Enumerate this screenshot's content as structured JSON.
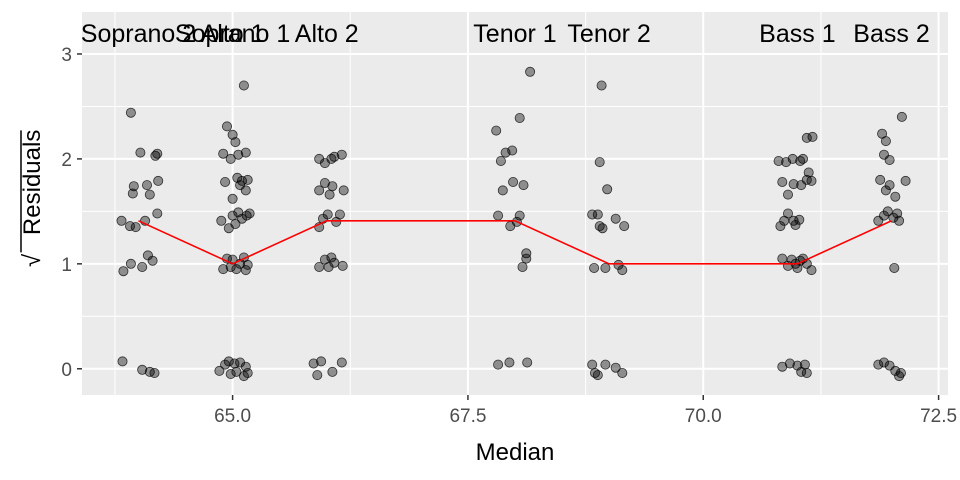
{
  "chart_data": {
    "type": "scatter",
    "title": "",
    "xlabel": "Median",
    "ylabel": "Residuals",
    "ylabel_prefix": "√",
    "xlim": [
      63.4,
      72.6
    ],
    "ylim": [
      -0.25,
      3.4
    ],
    "x_ticks": [
      65.0,
      67.5,
      70.0,
      72.5
    ],
    "x_tick_labels": [
      "65.0",
      "67.5",
      "70.0",
      "72.5"
    ],
    "y_ticks": [
      0,
      1,
      2,
      3
    ],
    "y_tick_labels": [
      "0",
      "1",
      "2",
      "3"
    ],
    "grid": true,
    "panel_background": "#ebebeb",
    "grid_color": "#ffffff",
    "point_color": "#000000",
    "point_alpha": 0.4,
    "trend_color": "#ff0000",
    "voice_labels": [
      {
        "text": "Soprano 2",
        "x": 64.0
      },
      {
        "text": "Soprano 1",
        "x": 65.0
      },
      {
        "text": "Alto 1",
        "x": 65.0
      },
      {
        "text": "Alto 2",
        "x": 66.0
      },
      {
        "text": "Tenor 1",
        "x": 68.0
      },
      {
        "text": "Tenor 2",
        "x": 69.0
      },
      {
        "text": "Bass 1",
        "x": 71.0
      },
      {
        "text": "Bass 2",
        "x": 72.0
      }
    ],
    "trend_line": {
      "x": [
        64.0,
        65.0,
        66.0,
        68.0,
        69.0,
        71.0,
        72.0
      ],
      "y": [
        1.41,
        1.0,
        1.41,
        1.41,
        1.0,
        1.0,
        1.41
      ]
    },
    "points": [
      {
        "x": 63.83,
        "y": 0.07
      },
      {
        "x": 64.12,
        "y": -0.03
      },
      {
        "x": 64.04,
        "y": -0.01
      },
      {
        "x": 64.17,
        "y": -0.04
      },
      {
        "x": 63.84,
        "y": 0.93
      },
      {
        "x": 63.92,
        "y": 1.0
      },
      {
        "x": 64.1,
        "y": 1.08
      },
      {
        "x": 64.04,
        "y": 0.97
      },
      {
        "x": 64.15,
        "y": 1.03
      },
      {
        "x": 63.82,
        "y": 1.41
      },
      {
        "x": 63.91,
        "y": 1.36
      },
      {
        "x": 63.97,
        "y": 1.35
      },
      {
        "x": 64.07,
        "y": 1.41
      },
      {
        "x": 64.2,
        "y": 1.48
      },
      {
        "x": 63.94,
        "y": 1.67
      },
      {
        "x": 63.95,
        "y": 1.74
      },
      {
        "x": 64.09,
        "y": 1.75
      },
      {
        "x": 64.12,
        "y": 1.66
      },
      {
        "x": 64.21,
        "y": 1.79
      },
      {
        "x": 64.02,
        "y": 2.06
      },
      {
        "x": 64.18,
        "y": 2.03
      },
      {
        "x": 64.2,
        "y": 2.05
      },
      {
        "x": 63.92,
        "y": 2.44
      },
      {
        "x": 64.86,
        "y": -0.02
      },
      {
        "x": 64.92,
        "y": 0.04
      },
      {
        "x": 64.96,
        "y": 0.07
      },
      {
        "x": 64.98,
        "y": -0.05
      },
      {
        "x": 65.02,
        "y": 0.05
      },
      {
        "x": 65.04,
        "y": -0.03
      },
      {
        "x": 65.08,
        "y": 0.06
      },
      {
        "x": 65.12,
        "y": -0.07
      },
      {
        "x": 65.14,
        "y": 0.02
      },
      {
        "x": 65.16,
        "y": -0.04
      },
      {
        "x": 64.9,
        "y": 0.95
      },
      {
        "x": 64.94,
        "y": 1.05
      },
      {
        "x": 64.98,
        "y": 0.97
      },
      {
        "x": 65.0,
        "y": 1.04
      },
      {
        "x": 65.04,
        "y": 0.95
      },
      {
        "x": 65.08,
        "y": 1.0
      },
      {
        "x": 65.12,
        "y": 1.06
      },
      {
        "x": 65.14,
        "y": 0.94
      },
      {
        "x": 65.16,
        "y": 0.99
      },
      {
        "x": 64.88,
        "y": 1.41
      },
      {
        "x": 64.96,
        "y": 1.34
      },
      {
        "x": 65.0,
        "y": 1.46
      },
      {
        "x": 65.03,
        "y": 1.38
      },
      {
        "x": 65.06,
        "y": 1.49
      },
      {
        "x": 65.1,
        "y": 1.43
      },
      {
        "x": 65.15,
        "y": 1.46
      },
      {
        "x": 65.18,
        "y": 1.48
      },
      {
        "x": 64.92,
        "y": 1.78
      },
      {
        "x": 65.0,
        "y": 1.62
      },
      {
        "x": 65.05,
        "y": 1.82
      },
      {
        "x": 65.08,
        "y": 1.75
      },
      {
        "x": 65.1,
        "y": 1.79
      },
      {
        "x": 65.14,
        "y": 1.7
      },
      {
        "x": 65.16,
        "y": 1.8
      },
      {
        "x": 64.9,
        "y": 2.05
      },
      {
        "x": 64.98,
        "y": 2.0
      },
      {
        "x": 65.06,
        "y": 2.04
      },
      {
        "x": 65.14,
        "y": 2.06
      },
      {
        "x": 64.94,
        "y": 2.31
      },
      {
        "x": 65.0,
        "y": 2.23
      },
      {
        "x": 65.03,
        "y": 2.16
      },
      {
        "x": 65.12,
        "y": 2.7
      },
      {
        "x": 65.86,
        "y": 0.05
      },
      {
        "x": 65.9,
        "y": -0.06
      },
      {
        "x": 65.94,
        "y": 0.07
      },
      {
        "x": 66.06,
        "y": -0.03
      },
      {
        "x": 66.16,
        "y": 0.06
      },
      {
        "x": 65.92,
        "y": 0.97
      },
      {
        "x": 65.98,
        "y": 1.04
      },
      {
        "x": 66.02,
        "y": 0.97
      },
      {
        "x": 66.05,
        "y": 1.06
      },
      {
        "x": 66.08,
        "y": 1.01
      },
      {
        "x": 66.17,
        "y": 0.98
      },
      {
        "x": 65.92,
        "y": 1.35
      },
      {
        "x": 65.96,
        "y": 1.43
      },
      {
        "x": 66.01,
        "y": 1.47
      },
      {
        "x": 66.1,
        "y": 1.4
      },
      {
        "x": 66.14,
        "y": 1.47
      },
      {
        "x": 65.92,
        "y": 1.7
      },
      {
        "x": 65.98,
        "y": 1.77
      },
      {
        "x": 66.03,
        "y": 1.66
      },
      {
        "x": 66.06,
        "y": 1.74
      },
      {
        "x": 66.18,
        "y": 1.7
      },
      {
        "x": 65.92,
        "y": 2.0
      },
      {
        "x": 65.98,
        "y": 1.96
      },
      {
        "x": 66.05,
        "y": 2.0
      },
      {
        "x": 66.08,
        "y": 2.02
      },
      {
        "x": 66.16,
        "y": 2.04
      },
      {
        "x": 67.82,
        "y": 0.04
      },
      {
        "x": 67.94,
        "y": 0.06
      },
      {
        "x": 68.13,
        "y": 0.06
      },
      {
        "x": 68.08,
        "y": 0.97
      },
      {
        "x": 68.12,
        "y": 1.05
      },
      {
        "x": 68.12,
        "y": 1.1
      },
      {
        "x": 67.82,
        "y": 1.46
      },
      {
        "x": 67.95,
        "y": 1.36
      },
      {
        "x": 68.02,
        "y": 1.4
      },
      {
        "x": 68.05,
        "y": 1.46
      },
      {
        "x": 67.87,
        "y": 1.7
      },
      {
        "x": 67.98,
        "y": 1.78
      },
      {
        "x": 68.09,
        "y": 1.75
      },
      {
        "x": 67.9,
        "y": 2.06
      },
      {
        "x": 67.97,
        "y": 2.08
      },
      {
        "x": 67.85,
        "y": 1.98
      },
      {
        "x": 67.8,
        "y": 2.27
      },
      {
        "x": 68.05,
        "y": 2.39
      },
      {
        "x": 68.16,
        "y": 2.83
      },
      {
        "x": 68.82,
        "y": 0.04
      },
      {
        "x": 68.85,
        "y": -0.04
      },
      {
        "x": 68.88,
        "y": -0.06
      },
      {
        "x": 68.96,
        "y": 0.04
      },
      {
        "x": 69.07,
        "y": 0.01
      },
      {
        "x": 69.14,
        "y": -0.04
      },
      {
        "x": 68.84,
        "y": 0.96
      },
      {
        "x": 68.96,
        "y": 0.96
      },
      {
        "x": 69.1,
        "y": 0.99
      },
      {
        "x": 69.14,
        "y": 0.94
      },
      {
        "x": 68.82,
        "y": 1.47
      },
      {
        "x": 68.88,
        "y": 1.47
      },
      {
        "x": 68.9,
        "y": 1.36
      },
      {
        "x": 68.93,
        "y": 1.34
      },
      {
        "x": 69.07,
        "y": 1.43
      },
      {
        "x": 69.16,
        "y": 1.36
      },
      {
        "x": 68.98,
        "y": 1.71
      },
      {
        "x": 68.9,
        "y": 1.97
      },
      {
        "x": 68.92,
        "y": 2.7
      },
      {
        "x": 70.84,
        "y": 0.02
      },
      {
        "x": 70.92,
        "y": 0.05
      },
      {
        "x": 71.0,
        "y": 0.03
      },
      {
        "x": 71.04,
        "y": -0.03
      },
      {
        "x": 71.08,
        "y": 0.04
      },
      {
        "x": 71.1,
        "y": -0.04
      },
      {
        "x": 70.84,
        "y": 1.05
      },
      {
        "x": 70.9,
        "y": 0.98
      },
      {
        "x": 70.94,
        "y": 1.04
      },
      {
        "x": 70.98,
        "y": 1.0
      },
      {
        "x": 71.0,
        "y": 0.96
      },
      {
        "x": 71.03,
        "y": 1.03
      },
      {
        "x": 71.06,
        "y": 1.05
      },
      {
        "x": 71.1,
        "y": 1.0
      },
      {
        "x": 71.15,
        "y": 0.94
      },
      {
        "x": 70.82,
        "y": 1.36
      },
      {
        "x": 70.86,
        "y": 1.41
      },
      {
        "x": 70.9,
        "y": 1.48
      },
      {
        "x": 70.96,
        "y": 1.41
      },
      {
        "x": 70.98,
        "y": 1.37
      },
      {
        "x": 71.02,
        "y": 1.42
      },
      {
        "x": 70.84,
        "y": 1.78
      },
      {
        "x": 70.9,
        "y": 1.66
      },
      {
        "x": 70.96,
        "y": 1.76
      },
      {
        "x": 71.04,
        "y": 1.75
      },
      {
        "x": 71.1,
        "y": 1.8
      },
      {
        "x": 71.15,
        "y": 1.79
      },
      {
        "x": 70.8,
        "y": 1.98
      },
      {
        "x": 70.88,
        "y": 1.97
      },
      {
        "x": 70.95,
        "y": 2.0
      },
      {
        "x": 71.03,
        "y": 1.98
      },
      {
        "x": 71.06,
        "y": 2.0
      },
      {
        "x": 71.12,
        "y": 1.87
      },
      {
        "x": 71.1,
        "y": 2.2
      },
      {
        "x": 71.16,
        "y": 2.21
      },
      {
        "x": 71.86,
        "y": 0.04
      },
      {
        "x": 71.92,
        "y": 0.06
      },
      {
        "x": 71.98,
        "y": 0.03
      },
      {
        "x": 72.04,
        "y": -0.02
      },
      {
        "x": 72.08,
        "y": -0.07
      },
      {
        "x": 72.1,
        "y": -0.04
      },
      {
        "x": 72.03,
        "y": 0.96
      },
      {
        "x": 71.86,
        "y": 1.41
      },
      {
        "x": 71.92,
        "y": 1.46
      },
      {
        "x": 71.96,
        "y": 1.5
      },
      {
        "x": 72.02,
        "y": 1.44
      },
      {
        "x": 72.06,
        "y": 1.48
      },
      {
        "x": 72.08,
        "y": 1.41
      },
      {
        "x": 71.88,
        "y": 1.8
      },
      {
        "x": 71.94,
        "y": 1.7
      },
      {
        "x": 71.98,
        "y": 1.75
      },
      {
        "x": 72.04,
        "y": 1.64
      },
      {
        "x": 72.15,
        "y": 1.79
      },
      {
        "x": 71.92,
        "y": 2.04
      },
      {
        "x": 71.98,
        "y": 1.99
      },
      {
        "x": 71.9,
        "y": 2.24
      },
      {
        "x": 71.94,
        "y": 2.17
      },
      {
        "x": 72.11,
        "y": 2.4
      }
    ]
  }
}
